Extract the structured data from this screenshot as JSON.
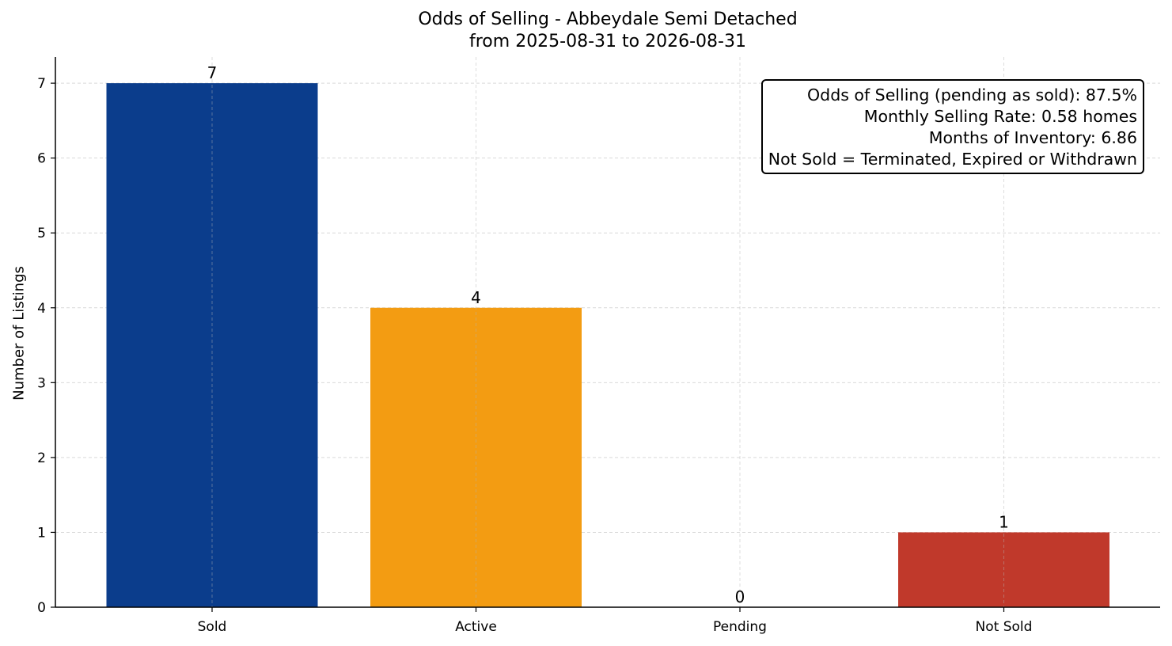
{
  "chart_data": {
    "type": "bar",
    "title": "Odds of Selling - Abbeydale Semi Detached",
    "subtitle": "from 2025-08-31 to 2026-08-31",
    "xlabel": "",
    "ylabel": "Number of Listings",
    "categories": [
      "Sold",
      "Active",
      "Pending",
      "Not Sold"
    ],
    "values": [
      7,
      4,
      0,
      1
    ],
    "colors": [
      "#0b3d8c",
      "#f39c12",
      "#f39c12",
      "#c0392b"
    ],
    "ylim": [
      0,
      7.35
    ],
    "yticks": [
      0,
      1,
      2,
      3,
      4,
      5,
      6,
      7
    ],
    "grid": true,
    "annotation_box": {
      "placement": "top-right",
      "lines": [
        "Odds of Selling (pending as sold): 87.5%",
        "Monthly Selling Rate: 0.58 homes",
        "Months of Inventory: 6.86",
        "Not Sold = Terminated, Expired or Withdrawn"
      ]
    }
  }
}
